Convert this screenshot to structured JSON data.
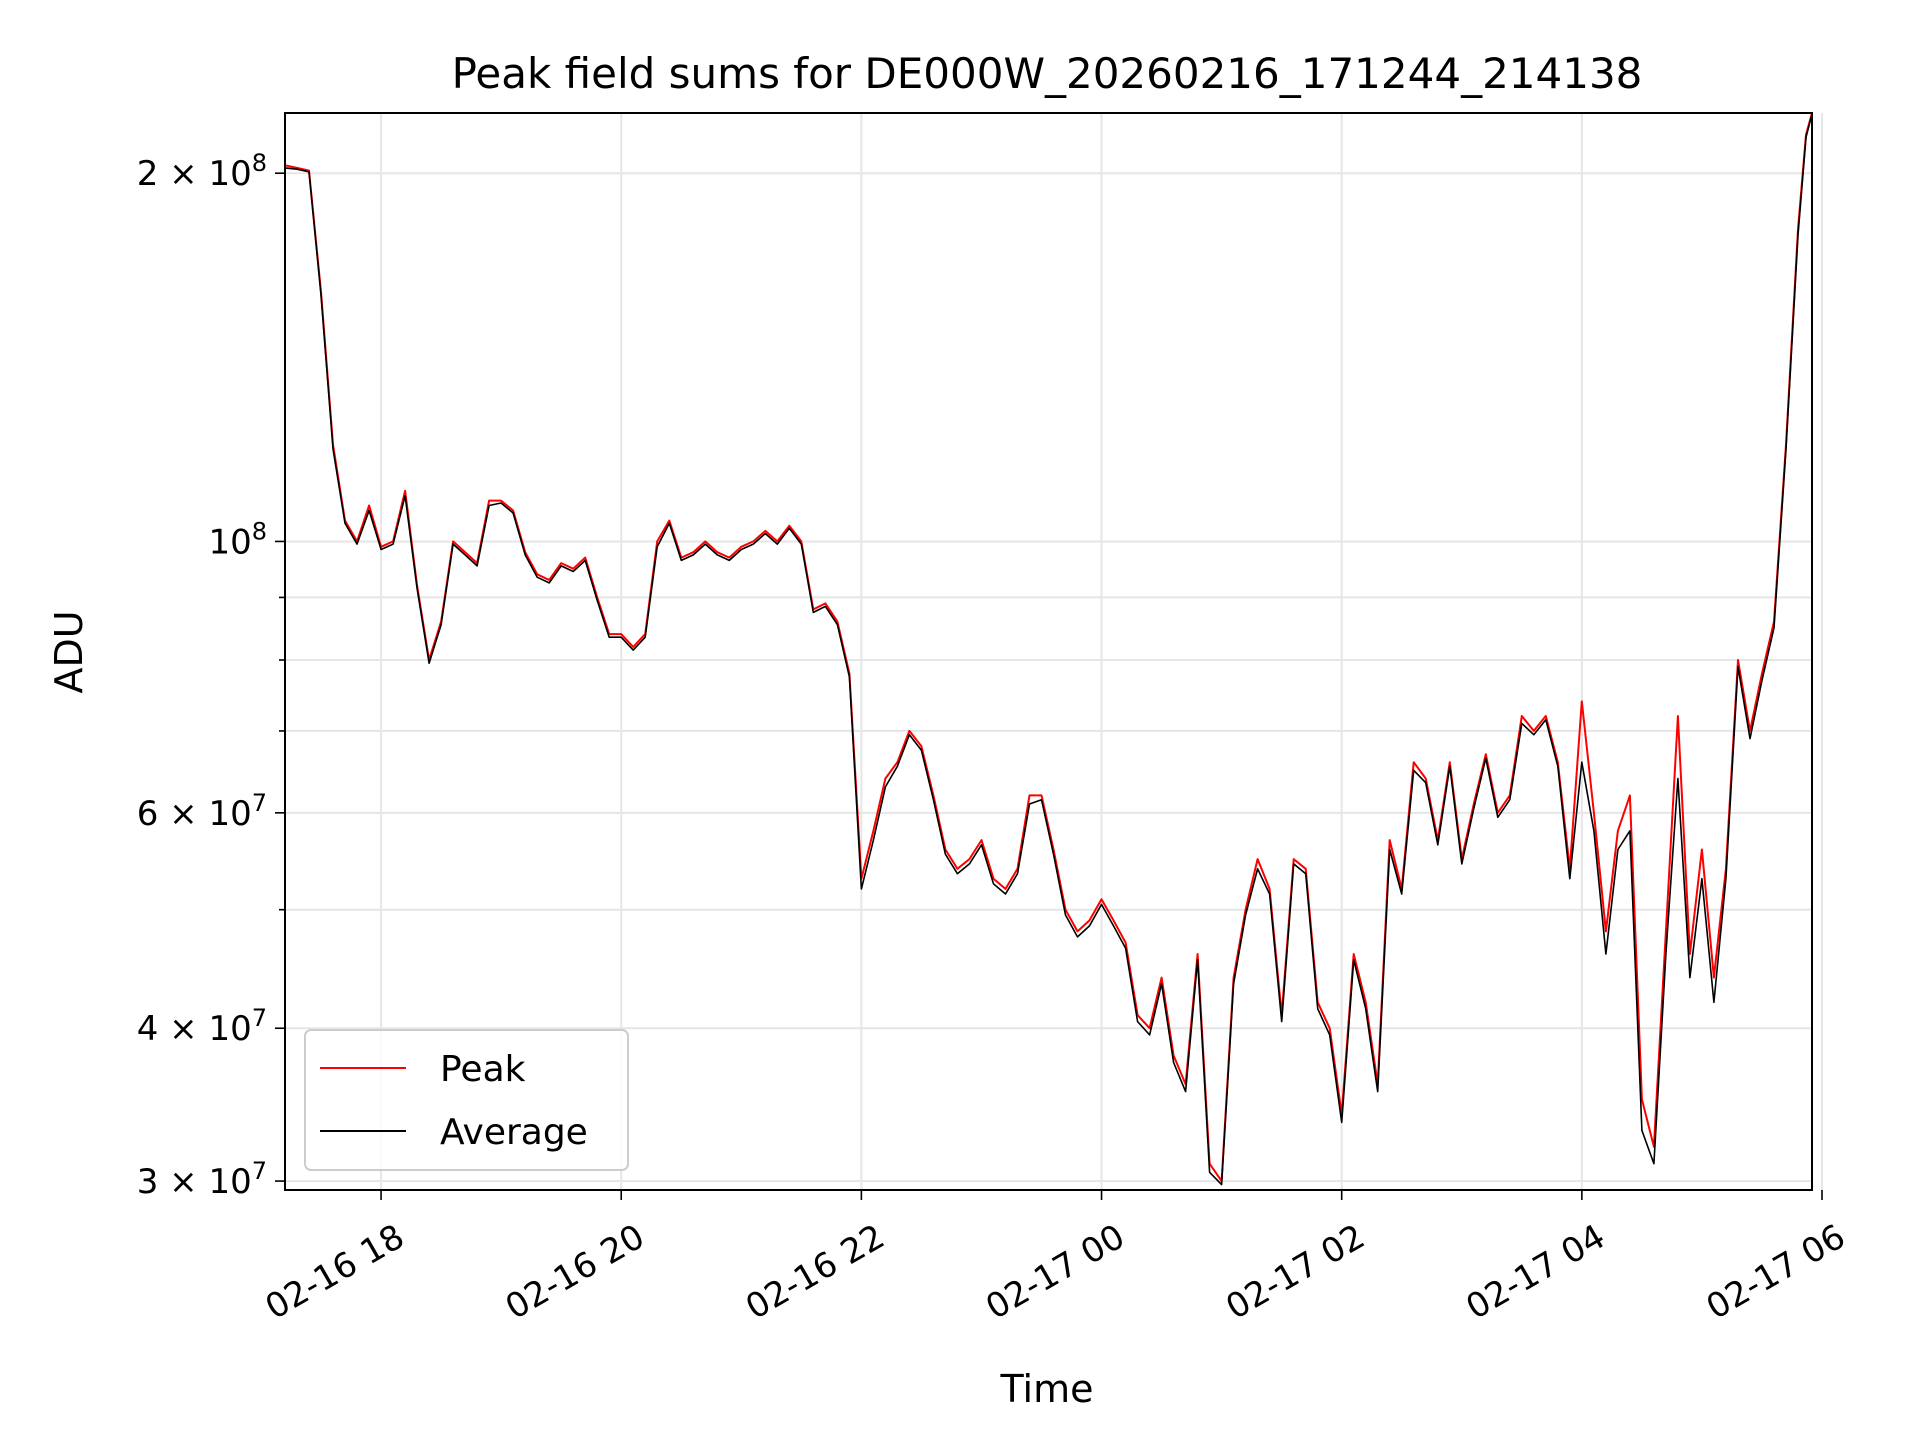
{
  "chart_data": {
    "type": "line",
    "title": "Peak field sums for DE000W_20260216_171244_214138",
    "xlabel": "Time",
    "ylabel": "ADU",
    "xscale": "time",
    "yscale": "log",
    "xlim": [
      "02-16 17:12",
      "02-17 05:55"
    ],
    "ylim": [
      29500000,
      224000000
    ],
    "grid": true,
    "legend_position": "lower-left",
    "x_ticks": [
      "02-16 18",
      "02-16 20",
      "02-16 22",
      "02-17 00",
      "02-17 02",
      "02-17 04",
      "02-17 06"
    ],
    "y_major_ticks": [
      {
        "value": 30000000,
        "label": "3 × 10⁷",
        "mant": "3",
        "exp": "7"
      },
      {
        "value": 40000000,
        "label": "4 × 10⁷",
        "mant": "4",
        "exp": "7"
      },
      {
        "value": 60000000,
        "label": "6 × 10⁷",
        "mant": "6",
        "exp": "7"
      },
      {
        "value": 100000000,
        "label": "10⁸",
        "mant": "",
        "exp": "8"
      },
      {
        "value": 200000000,
        "label": "2 × 10⁸",
        "mant": "2",
        "exp": "8"
      }
    ],
    "y_minor_gridlines": [
      50000000,
      70000000,
      80000000,
      90000000
    ],
    "series": [
      {
        "name": "Peak",
        "color": "#ff0000",
        "x": [
          "02-16 17:12",
          "02-16 17:18",
          "02-16 17:24",
          "02-16 17:30",
          "02-16 17:36",
          "02-16 17:42",
          "02-16 17:48",
          "02-16 17:54",
          "02-16 18:00",
          "02-16 18:06",
          "02-16 18:12",
          "02-16 18:18",
          "02-16 18:24",
          "02-16 18:30",
          "02-16 18:36",
          "02-16 18:42",
          "02-16 18:48",
          "02-16 18:54",
          "02-16 19:00",
          "02-16 19:06",
          "02-16 19:12",
          "02-16 19:18",
          "02-16 19:24",
          "02-16 19:30",
          "02-16 19:36",
          "02-16 19:42",
          "02-16 19:48",
          "02-16 19:54",
          "02-16 20:00",
          "02-16 20:06",
          "02-16 20:12",
          "02-16 20:18",
          "02-16 20:24",
          "02-16 20:30",
          "02-16 20:36",
          "02-16 20:42",
          "02-16 20:48",
          "02-16 20:54",
          "02-16 21:00",
          "02-16 21:06",
          "02-16 21:12",
          "02-16 21:18",
          "02-16 21:24",
          "02-16 21:30",
          "02-16 21:36",
          "02-16 21:42",
          "02-16 21:48",
          "02-16 21:54",
          "02-16 22:00",
          "02-16 22:06",
          "02-16 22:12",
          "02-16 22:18",
          "02-16 22:24",
          "02-16 22:30",
          "02-16 22:36",
          "02-16 22:42",
          "02-16 22:48",
          "02-16 22:54",
          "02-16 23:00",
          "02-16 23:06",
          "02-16 23:12",
          "02-16 23:18",
          "02-16 23:24",
          "02-16 23:30",
          "02-16 23:36",
          "02-16 23:42",
          "02-16 23:48",
          "02-16 23:54",
          "02-17 00:00",
          "02-17 00:06",
          "02-17 00:12",
          "02-17 00:18",
          "02-17 00:24",
          "02-17 00:30",
          "02-17 00:36",
          "02-17 00:42",
          "02-17 00:48",
          "02-17 00:54",
          "02-17 01:00",
          "02-17 01:06",
          "02-17 01:12",
          "02-17 01:18",
          "02-17 01:24",
          "02-17 01:30",
          "02-17 01:36",
          "02-17 01:42",
          "02-17 01:48",
          "02-17 01:54",
          "02-17 02:00",
          "02-17 02:06",
          "02-17 02:12",
          "02-17 02:18",
          "02-17 02:24",
          "02-17 02:30",
          "02-17 02:36",
          "02-17 02:42",
          "02-17 02:48",
          "02-17 02:54",
          "02-17 03:00",
          "02-17 03:06",
          "02-17 03:12",
          "02-17 03:18",
          "02-17 03:24",
          "02-17 03:30",
          "02-17 03:36",
          "02-17 03:42",
          "02-17 03:48",
          "02-17 03:54",
          "02-17 04:00",
          "02-17 04:06",
          "02-17 04:12",
          "02-17 04:18",
          "02-17 04:24",
          "02-17 04:30",
          "02-17 04:36",
          "02-17 04:42",
          "02-17 04:48",
          "02-17 04:54",
          "02-17 05:00",
          "02-17 05:06",
          "02-17 05:12",
          "02-17 05:18",
          "02-17 05:24",
          "02-17 05:30",
          "02-17 05:36",
          "02-17 05:42",
          "02-17 05:48",
          "02-17 05:52",
          "02-17 05:55"
        ],
        "values": [
          203000000,
          202000000,
          201000000,
          160000000,
          120000000,
          104000000,
          100000000,
          107000000,
          99000000,
          100000000,
          110000000,
          92000000,
          80000000,
          86000000,
          100000000,
          98000000,
          96000000,
          108000000,
          108000000,
          106000000,
          98000000,
          94000000,
          93000000,
          96000000,
          95000000,
          97000000,
          90000000,
          84000000,
          84000000,
          82000000,
          84000000,
          100000000,
          104000000,
          97000000,
          98000000,
          100000000,
          98000000,
          97000000,
          99000000,
          100000000,
          102000000,
          100000000,
          103000000,
          100000000,
          88000000,
          89000000,
          86000000,
          78000000,
          53000000,
          58000000,
          64000000,
          66000000,
          70000000,
          68000000,
          62000000,
          56000000,
          54000000,
          55000000,
          57000000,
          53000000,
          52000000,
          54000000,
          62000000,
          62000000,
          56000000,
          50000000,
          48000000,
          49000000,
          51000000,
          49000000,
          47000000,
          41000000,
          40000000,
          44000000,
          38000000,
          36000000,
          46000000,
          31000000,
          30000000,
          44000000,
          50000000,
          55000000,
          52000000,
          41000000,
          55000000,
          54000000,
          42000000,
          40000000,
          34000000,
          46000000,
          42000000,
          36000000,
          57000000,
          52000000,
          66000000,
          64000000,
          57000000,
          66000000,
          55000000,
          61000000,
          67000000,
          60000000,
          62000000,
          72000000,
          70000000,
          72000000,
          66000000,
          54000000,
          74000000,
          60000000,
          48000000,
          58000000,
          62000000,
          35000000,
          32000000,
          48000000,
          72000000,
          46000000,
          56000000,
          44000000,
          54000000,
          80000000,
          70000000,
          78000000,
          86000000,
          120000000,
          180000000,
          215000000,
          224000000
        ]
      },
      {
        "name": "Average",
        "color": "#000000",
        "x": [
          "02-16 17:12",
          "02-16 17:18",
          "02-16 17:24",
          "02-16 17:30",
          "02-16 17:36",
          "02-16 17:42",
          "02-16 17:48",
          "02-16 17:54",
          "02-16 18:00",
          "02-16 18:06",
          "02-16 18:12",
          "02-16 18:18",
          "02-16 18:24",
          "02-16 18:30",
          "02-16 18:36",
          "02-16 18:42",
          "02-16 18:48",
          "02-16 18:54",
          "02-16 19:00",
          "02-16 19:06",
          "02-16 19:12",
          "02-16 19:18",
          "02-16 19:24",
          "02-16 19:30",
          "02-16 19:36",
          "02-16 19:42",
          "02-16 19:48",
          "02-16 19:54",
          "02-16 20:00",
          "02-16 20:06",
          "02-16 20:12",
          "02-16 20:18",
          "02-16 20:24",
          "02-16 20:30",
          "02-16 20:36",
          "02-16 20:42",
          "02-16 20:48",
          "02-16 20:54",
          "02-16 21:00",
          "02-16 21:06",
          "02-16 21:12",
          "02-16 21:18",
          "02-16 21:24",
          "02-16 21:30",
          "02-16 21:36",
          "02-16 21:42",
          "02-16 21:48",
          "02-16 21:54",
          "02-16 22:00",
          "02-16 22:06",
          "02-16 22:12",
          "02-16 22:18",
          "02-16 22:24",
          "02-16 22:30",
          "02-16 22:36",
          "02-16 22:42",
          "02-16 22:48",
          "02-16 22:54",
          "02-16 23:00",
          "02-16 23:06",
          "02-16 23:12",
          "02-16 23:18",
          "02-16 23:24",
          "02-16 23:30",
          "02-16 23:36",
          "02-16 23:42",
          "02-16 23:48",
          "02-16 23:54",
          "02-17 00:00",
          "02-17 00:06",
          "02-17 00:12",
          "02-17 00:18",
          "02-17 00:24",
          "02-17 00:30",
          "02-17 00:36",
          "02-17 00:42",
          "02-17 00:48",
          "02-17 00:54",
          "02-17 01:00",
          "02-17 01:06",
          "02-17 01:12",
          "02-17 01:18",
          "02-17 01:24",
          "02-17 01:30",
          "02-17 01:36",
          "02-17 01:42",
          "02-17 01:48",
          "02-17 01:54",
          "02-17 02:00",
          "02-17 02:06",
          "02-17 02:12",
          "02-17 02:18",
          "02-17 02:24",
          "02-17 02:30",
          "02-17 02:36",
          "02-17 02:42",
          "02-17 02:48",
          "02-17 02:54",
          "02-17 03:00",
          "02-17 03:06",
          "02-17 03:12",
          "02-17 03:18",
          "02-17 03:24",
          "02-17 03:30",
          "02-17 03:36",
          "02-17 03:42",
          "02-17 03:48",
          "02-17 03:54",
          "02-17 04:00",
          "02-17 04:06",
          "02-17 04:12",
          "02-17 04:18",
          "02-17 04:24",
          "02-17 04:30",
          "02-17 04:36",
          "02-17 04:42",
          "02-17 04:48",
          "02-17 04:54",
          "02-17 05:00",
          "02-17 05:06",
          "02-17 05:12",
          "02-17 05:18",
          "02-17 05:24",
          "02-17 05:30",
          "02-17 05:36",
          "02-17 05:42",
          "02-17 05:48",
          "02-17 05:52",
          "02-17 05:55"
        ],
        "values": [
          202000000,
          201500000,
          200500000,
          159000000,
          119000000,
          103500000,
          99500000,
          106000000,
          98500000,
          99500000,
          109000000,
          91500000,
          79500000,
          85500000,
          99500000,
          97500000,
          95500000,
          107000000,
          107500000,
          105500000,
          97500000,
          93500000,
          92500000,
          95500000,
          94500000,
          96500000,
          89500000,
          83500000,
          83500000,
          81500000,
          83500000,
          99000000,
          103500000,
          96500000,
          97500000,
          99500000,
          97500000,
          96500000,
          98500000,
          99500000,
          101500000,
          99500000,
          102500000,
          99500000,
          87500000,
          88500000,
          85500000,
          77500000,
          52000000,
          57000000,
          63000000,
          65500000,
          69500000,
          67500000,
          61500000,
          55500000,
          53500000,
          54500000,
          56500000,
          52500000,
          51500000,
          53500000,
          61000000,
          61500000,
          55500000,
          49500000,
          47500000,
          48500000,
          50500000,
          48500000,
          46500000,
          40500000,
          39500000,
          43500000,
          37500000,
          35500000,
          45500000,
          30500000,
          29800000,
          43500000,
          49500000,
          54000000,
          51500000,
          40500000,
          54500000,
          53500000,
          41500000,
          39500000,
          33500000,
          45500000,
          41500000,
          35500000,
          56000000,
          51500000,
          65000000,
          63500000,
          56500000,
          65500000,
          54500000,
          60500000,
          66500000,
          59500000,
          61500000,
          71000000,
          69500000,
          71500000,
          65500000,
          53000000,
          66000000,
          58000000,
          46000000,
          56000000,
          58000000,
          33000000,
          31000000,
          46000000,
          64000000,
          44000000,
          53000000,
          42000000,
          53000000,
          79000000,
          69000000,
          77000000,
          85000000,
          119000000,
          178000000,
          214000000,
          223500000
        ]
      }
    ]
  }
}
